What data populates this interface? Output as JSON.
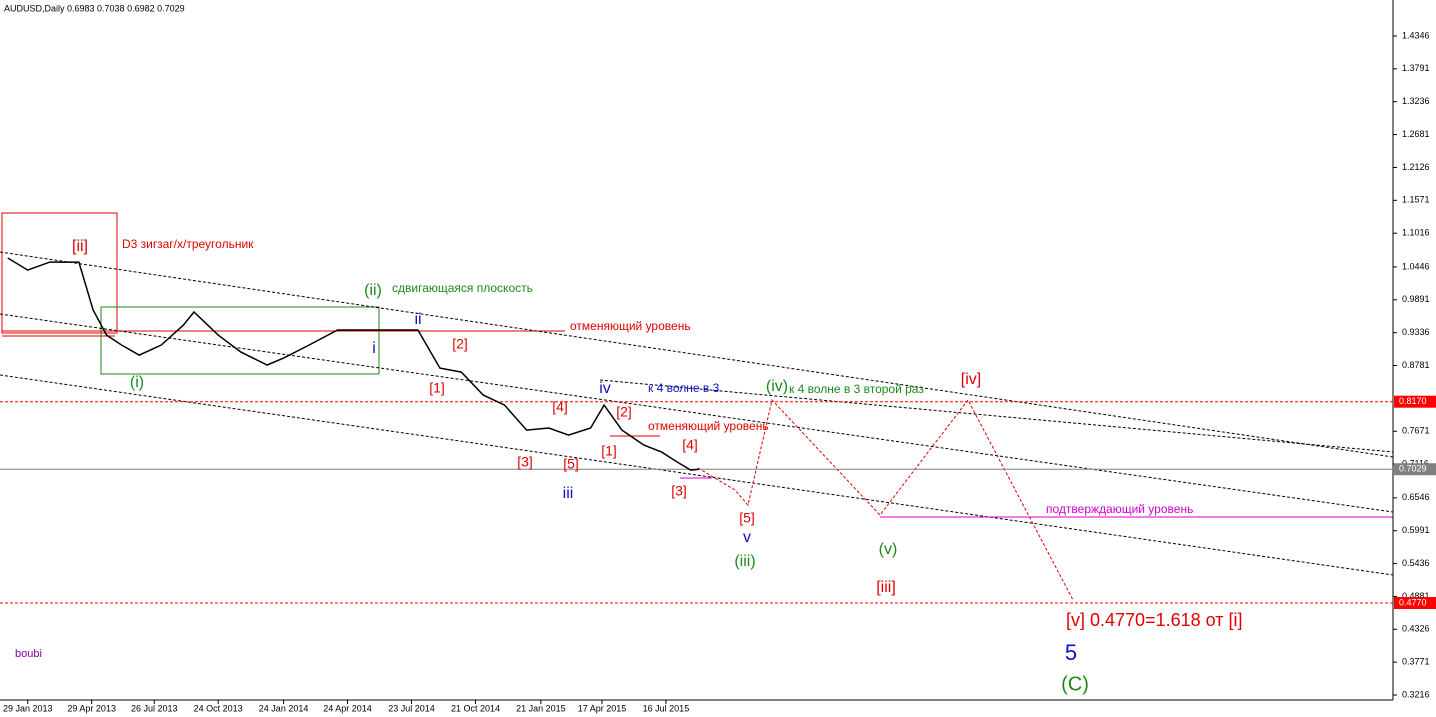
{
  "chart_data": {
    "type": "line",
    "title": "AUDUSD,Daily  0.6983 0.7038 0.6982 0.7029",
    "watermark": "boubi",
    "color": "#000000",
    "x": [
      "2013-01-01",
      "2013-01-29",
      "2013-03-01",
      "2013-04-11",
      "2013-05-01",
      "2013-05-20",
      "2013-06-10",
      "2013-07-05",
      "2013-08-05",
      "2013-09-05",
      "2013-09-20",
      "2013-10-24",
      "2013-11-25",
      "2014-01-01",
      "2014-01-24",
      "2014-03-01",
      "2014-04-10",
      "2014-05-20",
      "2014-07-01",
      "2014-08-01",
      "2014-09-01",
      "2014-10-01",
      "2014-11-01",
      "2014-12-01",
      "2015-01-01",
      "2015-02-01",
      "2015-03-01",
      "2015-04-01",
      "2015-04-20",
      "2015-05-15",
      "2015-06-15",
      "2015-07-10",
      "2015-08-01",
      "2015-08-20",
      "2015-09-01"
    ],
    "values": [
      1.0596,
      1.0393,
      1.0528,
      1.0528,
      0.9718,
      0.9295,
      0.9127,
      0.8957,
      0.9127,
      0.9464,
      0.9684,
      0.9295,
      0.9008,
      0.8789,
      0.8907,
      0.9127,
      0.938,
      0.938,
      0.938,
      0.938,
      0.8738,
      0.867,
      0.8282,
      0.8113,
      0.7691,
      0.7725,
      0.7606,
      0.7725,
      0.8113,
      0.7691,
      0.7437,
      0.7319,
      0.715,
      0.7015,
      0.7029
    ],
    "xlim": [
      "2012-12-21",
      "2018-05-04"
    ],
    "xticks": [
      {
        "value": "2013-01-29",
        "label": "29 Jan 2013"
      },
      {
        "value": "2013-04-29",
        "label": "29 Apr 2013"
      },
      {
        "value": "2013-07-26",
        "label": "26 Jul 2013"
      },
      {
        "value": "2013-10-24",
        "label": "24 Oct 2013"
      },
      {
        "value": "2014-01-24",
        "label": "24 Jan 2014"
      },
      {
        "value": "2014-04-24",
        "label": "24 Apr 2014"
      },
      {
        "value": "2014-07-23",
        "label": "23 Jul 2014"
      },
      {
        "value": "2014-10-21",
        "label": "21 Oct 2014"
      },
      {
        "value": "2015-01-21",
        "label": "21 Jan 2015"
      },
      {
        "value": "2015-04-17",
        "label": "17 Apr 2015"
      },
      {
        "value": "2015-07-16",
        "label": "16 Jul 2015"
      }
    ],
    "ylim": [
      0.3132,
      1.4954
    ],
    "yticks": [
      1.4346,
      1.3791,
      1.3236,
      1.2681,
      1.2126,
      1.1571,
      1.1016,
      1.0446,
      0.9891,
      0.9336,
      0.8781,
      0.7671,
      0.7116,
      0.6546,
      0.5991,
      0.5436,
      0.4881,
      0.4326,
      0.3771,
      0.3216
    ],
    "levels": [
      {
        "value": 0.817,
        "label": "0.8170",
        "color": "#ff0000"
      },
      {
        "value": 0.7029,
        "label": "0.7029",
        "color": "#808080"
      },
      {
        "value": 0.477,
        "label": "0.4770",
        "color": "#ff0000"
      }
    ],
    "annotations": [
      {
        "text": "[ii]",
        "color": "#e00000"
      },
      {
        "text": "D3 зигзаг/х/треугольник",
        "color": "#e00000"
      },
      {
        "text": "(ii)",
        "color": "#1a8a1a"
      },
      {
        "text": "сдвигающаяся плоскость",
        "color": "#1a8a1a"
      },
      {
        "text": "отменяющий уровень",
        "color": "#e00000"
      },
      {
        "text": "ii",
        "color": "#1010c0"
      },
      {
        "text": "i",
        "color": "#1010c0"
      },
      {
        "text": "(i)",
        "color": "#1a8a1a"
      },
      {
        "text": "[2]",
        "color": "#e00000"
      },
      {
        "text": "[1]",
        "color": "#e00000"
      },
      {
        "text": "iv",
        "color": "#1010c0"
      },
      {
        "text": "к 4 волне в 3",
        "color": "#1010c0"
      },
      {
        "text": "(iv)",
        "color": "#1a8a1a"
      },
      {
        "text": "к 4 волне в 3 второй раз",
        "color": "#1a8a1a"
      },
      {
        "text": "[iv]",
        "color": "#e00000"
      },
      {
        "text": "[4]",
        "color": "#e00000"
      },
      {
        "text": "[2]",
        "color": "#e00000"
      },
      {
        "text": "отменяющий уровень",
        "color": "#e00000"
      },
      {
        "text": "[4]",
        "color": "#e00000"
      },
      {
        "text": "[1]",
        "color": "#e00000"
      },
      {
        "text": "[3]",
        "color": "#e00000"
      },
      {
        "text": "[5]",
        "color": "#e00000"
      },
      {
        "text": "[3]",
        "color": "#e00000"
      },
      {
        "text": "iii",
        "color": "#1010c0"
      },
      {
        "text": "[5]",
        "color": "#e00000"
      },
      {
        "text": "v",
        "color": "#1010c0"
      },
      {
        "text": "(iii)",
        "color": "#1a8a1a"
      },
      {
        "text": "подтверждающий уровень",
        "color": "#d000d0"
      },
      {
        "text": "(v)",
        "color": "#1a8a1a"
      },
      {
        "text": "[iii]",
        "color": "#e00000"
      },
      {
        "text": "[v]  0.4770=1.618 от [i]",
        "color": "#e00000"
      },
      {
        "text": "5",
        "color": "#1010c0"
      },
      {
        "text": "(C)",
        "color": "#1a8a1a"
      }
    ]
  }
}
